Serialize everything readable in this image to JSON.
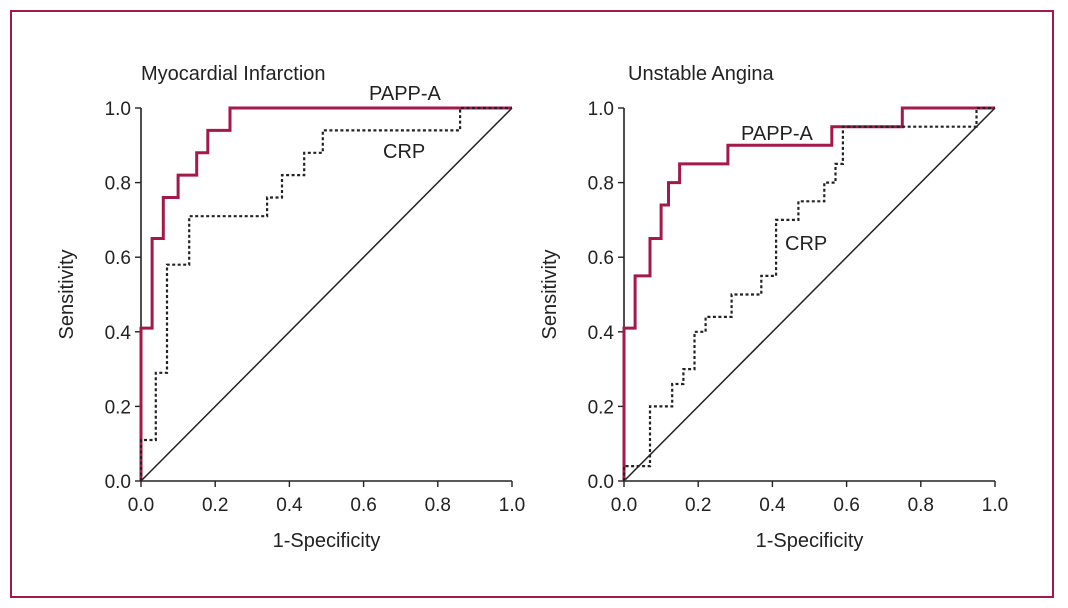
{
  "frame": {
    "color": "#a3194a"
  },
  "colors": {
    "papp": "#a3194a",
    "crp": "#222222",
    "axis": "#222222",
    "diagonal": "#222222"
  },
  "chart_data": [
    {
      "type": "line",
      "title": "Myocardial Infarction",
      "xlabel": "1-Specificity",
      "ylabel": "Sensitivity",
      "xlim": [
        0,
        1
      ],
      "ylim": [
        0,
        1
      ],
      "xticks": [
        "0.0",
        "0.2",
        "0.4",
        "0.6",
        "0.8",
        "1.0"
      ],
      "yticks": [
        "0.0",
        "0.2",
        "0.4",
        "0.6",
        "0.8",
        "1.0"
      ],
      "grid": false,
      "series": [
        {
          "name": "PAPP-A",
          "style": "solid",
          "points": [
            [
              0,
              0
            ],
            [
              0,
              0.41
            ],
            [
              0.03,
              0.41
            ],
            [
              0.03,
              0.65
            ],
            [
              0.06,
              0.65
            ],
            [
              0.06,
              0.76
            ],
            [
              0.1,
              0.76
            ],
            [
              0.1,
              0.82
            ],
            [
              0.15,
              0.82
            ],
            [
              0.15,
              0.88
            ],
            [
              0.18,
              0.88
            ],
            [
              0.18,
              0.94
            ],
            [
              0.24,
              0.94
            ],
            [
              0.24,
              1.0
            ],
            [
              1.0,
              1.0
            ]
          ]
        },
        {
          "name": "CRP",
          "style": "dotted",
          "points": [
            [
              0,
              0
            ],
            [
              0,
              0.11
            ],
            [
              0.04,
              0.11
            ],
            [
              0.04,
              0.29
            ],
            [
              0.07,
              0.29
            ],
            [
              0.07,
              0.58
            ],
            [
              0.13,
              0.58
            ],
            [
              0.13,
              0.71
            ],
            [
              0.34,
              0.71
            ],
            [
              0.34,
              0.76
            ],
            [
              0.38,
              0.76
            ],
            [
              0.38,
              0.82
            ],
            [
              0.44,
              0.82
            ],
            [
              0.44,
              0.88
            ],
            [
              0.49,
              0.88
            ],
            [
              0.49,
              0.94
            ],
            [
              0.86,
              0.94
            ],
            [
              0.86,
              1.0
            ],
            [
              1.0,
              1.0
            ]
          ]
        }
      ]
    },
    {
      "type": "line",
      "title": "Unstable Angina",
      "xlabel": "1-Specificity",
      "ylabel": "Sensitivity",
      "xlim": [
        0,
        1
      ],
      "ylim": [
        0,
        1
      ],
      "xticks": [
        "0.0",
        "0.2",
        "0.4",
        "0.6",
        "0.8",
        "1.0"
      ],
      "yticks": [
        "0.0",
        "0.2",
        "0.4",
        "0.6",
        "0.8",
        "1.0"
      ],
      "grid": false,
      "series": [
        {
          "name": "PAPP-A",
          "style": "solid",
          "points": [
            [
              0,
              0
            ],
            [
              0,
              0.41
            ],
            [
              0.03,
              0.41
            ],
            [
              0.03,
              0.55
            ],
            [
              0.07,
              0.55
            ],
            [
              0.07,
              0.65
            ],
            [
              0.1,
              0.65
            ],
            [
              0.1,
              0.74
            ],
            [
              0.12,
              0.74
            ],
            [
              0.12,
              0.8
            ],
            [
              0.15,
              0.8
            ],
            [
              0.15,
              0.85
            ],
            [
              0.28,
              0.85
            ],
            [
              0.28,
              0.9
            ],
            [
              0.56,
              0.9
            ],
            [
              0.56,
              0.95
            ],
            [
              0.75,
              0.95
            ],
            [
              0.75,
              1.0
            ],
            [
              1.0,
              1.0
            ]
          ]
        },
        {
          "name": "CRP",
          "style": "dotted",
          "points": [
            [
              0,
              0
            ],
            [
              0,
              0.04
            ],
            [
              0.07,
              0.04
            ],
            [
              0.07,
              0.2
            ],
            [
              0.13,
              0.2
            ],
            [
              0.13,
              0.26
            ],
            [
              0.16,
              0.26
            ],
            [
              0.16,
              0.3
            ],
            [
              0.19,
              0.3
            ],
            [
              0.19,
              0.4
            ],
            [
              0.22,
              0.4
            ],
            [
              0.22,
              0.44
            ],
            [
              0.29,
              0.44
            ],
            [
              0.29,
              0.5
            ],
            [
              0.37,
              0.5
            ],
            [
              0.37,
              0.55
            ],
            [
              0.41,
              0.55
            ],
            [
              0.41,
              0.7
            ],
            [
              0.47,
              0.7
            ],
            [
              0.47,
              0.75
            ],
            [
              0.54,
              0.75
            ],
            [
              0.54,
              0.8
            ],
            [
              0.57,
              0.8
            ],
            [
              0.57,
              0.85
            ],
            [
              0.59,
              0.85
            ],
            [
              0.59,
              0.95
            ],
            [
              0.95,
              0.95
            ],
            [
              0.95,
              1.0
            ],
            [
              1.0,
              1.0
            ]
          ]
        }
      ]
    }
  ]
}
